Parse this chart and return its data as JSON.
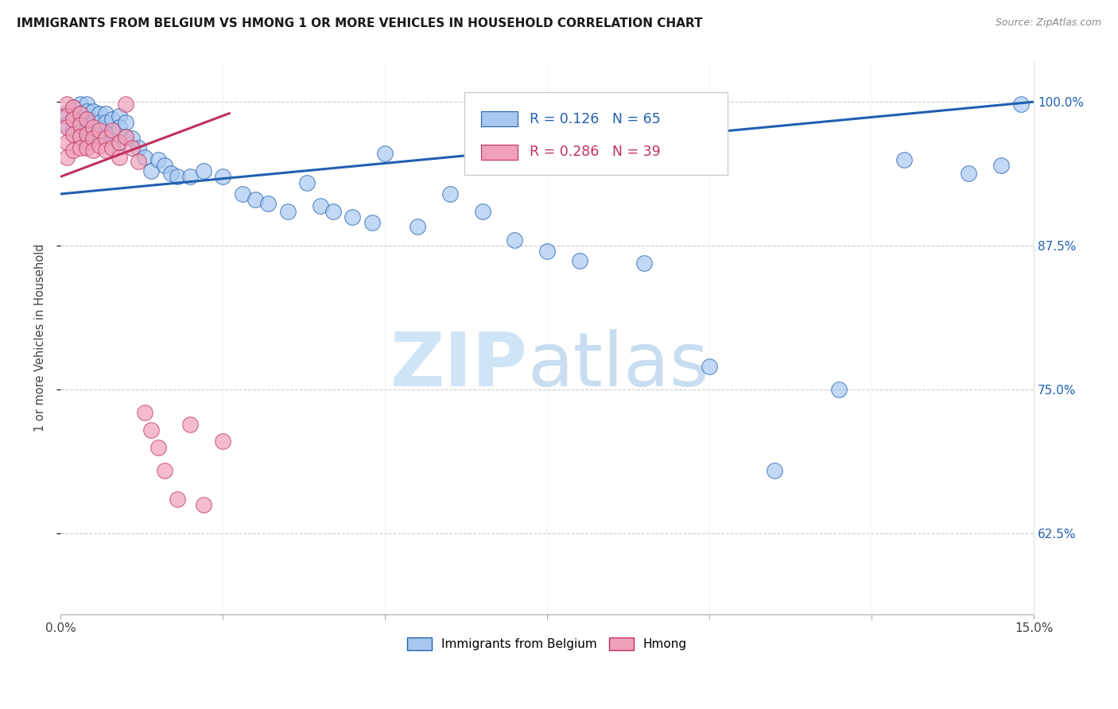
{
  "title": "IMMIGRANTS FROM BELGIUM VS HMONG 1 OR MORE VEHICLES IN HOUSEHOLD CORRELATION CHART",
  "source": "Source: ZipAtlas.com",
  "ylabel": "1 or more Vehicles in Household",
  "yticks_labels": [
    "62.5%",
    "75.0%",
    "87.5%",
    "100.0%"
  ],
  "ytick_vals": [
    0.625,
    0.75,
    0.875,
    1.0
  ],
  "xmin": 0.0,
  "xmax": 0.15,
  "ymin": 0.555,
  "ymax": 1.035,
  "legend_blue_r": "0.126",
  "legend_blue_n": "65",
  "legend_pink_r": "0.286",
  "legend_pink_n": "39",
  "legend_label_blue": "Immigrants from Belgium",
  "legend_label_pink": "Hmong",
  "color_blue": "#a8c8f0",
  "color_pink": "#f0a0b8",
  "trendline_color_blue": "#2060b0",
  "trendline_color_pink": "#c03060",
  "watermark_zip_color": "#d0e4f8",
  "watermark_atlas_color": "#c8ddf0",
  "blue_x": [
    0.001,
    0.001,
    0.002,
    0.002,
    0.002,
    0.003,
    0.003,
    0.003,
    0.003,
    0.004,
    0.004,
    0.004,
    0.004,
    0.004,
    0.005,
    0.005,
    0.005,
    0.006,
    0.006,
    0.006,
    0.007,
    0.007,
    0.007,
    0.008,
    0.008,
    0.009,
    0.009,
    0.009,
    0.01,
    0.01,
    0.011,
    0.012,
    0.013,
    0.014,
    0.015,
    0.016,
    0.017,
    0.018,
    0.02,
    0.022,
    0.025,
    0.028,
    0.03,
    0.032,
    0.035,
    0.038,
    0.04,
    0.042,
    0.045,
    0.048,
    0.05,
    0.055,
    0.06,
    0.065,
    0.07,
    0.075,
    0.08,
    0.09,
    0.1,
    0.11,
    0.12,
    0.13,
    0.14,
    0.145,
    0.148
  ],
  "blue_y": [
    0.99,
    0.98,
    0.995,
    0.985,
    0.975,
    0.998,
    0.99,
    0.982,
    0.97,
    0.998,
    0.992,
    0.985,
    0.975,
    0.965,
    0.992,
    0.982,
    0.972,
    0.99,
    0.982,
    0.972,
    0.99,
    0.982,
    0.97,
    0.985,
    0.972,
    0.988,
    0.978,
    0.965,
    0.982,
    0.97,
    0.968,
    0.96,
    0.952,
    0.94,
    0.95,
    0.945,
    0.938,
    0.935,
    0.935,
    0.94,
    0.935,
    0.92,
    0.915,
    0.912,
    0.905,
    0.93,
    0.91,
    0.905,
    0.9,
    0.895,
    0.955,
    0.892,
    0.92,
    0.905,
    0.88,
    0.87,
    0.862,
    0.86,
    0.77,
    0.68,
    0.75,
    0.95,
    0.938,
    0.945,
    0.998
  ],
  "pink_x": [
    0.001,
    0.001,
    0.001,
    0.001,
    0.001,
    0.002,
    0.002,
    0.002,
    0.002,
    0.003,
    0.003,
    0.003,
    0.003,
    0.004,
    0.004,
    0.004,
    0.005,
    0.005,
    0.005,
    0.006,
    0.006,
    0.007,
    0.007,
    0.008,
    0.008,
    0.009,
    0.009,
    0.01,
    0.01,
    0.011,
    0.012,
    0.013,
    0.014,
    0.015,
    0.016,
    0.018,
    0.02,
    0.022,
    0.025
  ],
  "pink_y": [
    0.998,
    0.988,
    0.978,
    0.965,
    0.952,
    0.995,
    0.985,
    0.972,
    0.958,
    0.99,
    0.98,
    0.97,
    0.96,
    0.985,
    0.972,
    0.96,
    0.978,
    0.968,
    0.958,
    0.975,
    0.962,
    0.968,
    0.958,
    0.975,
    0.96,
    0.965,
    0.952,
    0.998,
    0.97,
    0.96,
    0.948,
    0.73,
    0.715,
    0.7,
    0.68,
    0.655,
    0.72,
    0.65,
    0.705
  ],
  "trendline_blue_x0": 0.0,
  "trendline_blue_x1": 0.15,
  "trendline_blue_y0": 0.92,
  "trendline_blue_y1": 1.0,
  "trendline_pink_x0": 0.0,
  "trendline_pink_x1": 0.026,
  "trendline_pink_y0": 0.935,
  "trendline_pink_y1": 0.99
}
